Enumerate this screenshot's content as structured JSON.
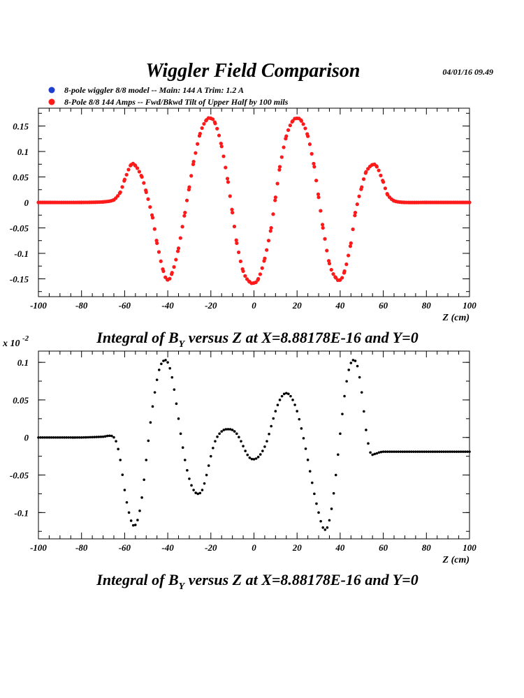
{
  "header": {
    "title": "Wiggler Field Comparison",
    "timestamp": "04/01/16   09.49"
  },
  "legend": {
    "entries": [
      {
        "label": "8-pole wiggler 8/8 model --  Main: 144 A    Trim: 1.2 A",
        "color": "#1f3fd0"
      },
      {
        "label": "8-Pole 8/8 144 Amps -- Fwd/Bkwd Tilt of Upper Half by 100 mils",
        "color": "#ff1a1a"
      }
    ]
  },
  "colors": {
    "series_blue": "#1f3fd0",
    "series_red": "#ff1a1a",
    "series_black": "#000000"
  },
  "chart_data": [
    {
      "type": "scatter",
      "xlabel": "Z (cm)",
      "ylabel": "",
      "xlim": [
        -100,
        100
      ],
      "ylim": [
        -0.185,
        0.185
      ],
      "xticks": [
        "-100",
        "-80",
        "-60",
        "-40",
        "-20",
        "0",
        "20",
        "40",
        "60",
        "80",
        "100"
      ],
      "yticks": [
        "-0.15",
        "-0.1",
        "-0.05",
        "0",
        "0.05",
        "0.1",
        "0.15"
      ],
      "caption": "Integral of B",
      "caption_sub": "Y",
      "caption_rest": " versus Z at X=8.88178E-16 and Y=0",
      "grid": false,
      "series": [
        {
          "color": "#1f3fd0",
          "x": [
            -100,
            -80,
            -70,
            -65,
            -62,
            -60,
            -57,
            -55,
            -52,
            -50,
            -47,
            -45,
            -42,
            -40,
            -38,
            -35,
            -32,
            -30,
            -28,
            -25,
            -22,
            -20,
            -18,
            -15,
            -12,
            -10,
            -8,
            -5,
            -2,
            0,
            2,
            5,
            8,
            10,
            12,
            15,
            18,
            20,
            22,
            25,
            28,
            30,
            32,
            35,
            38,
            40,
            42,
            45,
            47,
            50,
            52,
            55,
            57,
            60,
            62,
            65,
            70,
            80,
            100
          ],
          "y": [
            0,
            0,
            0.001,
            0.005,
            0.02,
            0.045,
            0.074,
            0.072,
            0.05,
            0.02,
            -0.03,
            -0.08,
            -0.135,
            -0.152,
            -0.138,
            -0.09,
            -0.02,
            0.03,
            0.08,
            0.135,
            0.162,
            0.165,
            0.155,
            0.11,
            0.04,
            -0.02,
            -0.08,
            -0.135,
            -0.156,
            -0.158,
            -0.15,
            -0.11,
            -0.05,
            0.01,
            0.07,
            0.13,
            0.16,
            0.165,
            0.16,
            0.13,
            0.07,
            0.01,
            -0.05,
            -0.12,
            -0.148,
            -0.152,
            -0.135,
            -0.08,
            -0.02,
            0.03,
            0.06,
            0.074,
            0.07,
            0.04,
            0.015,
            0.003,
            0,
            0,
            0
          ]
        },
        {
          "color": "#ff1a1a",
          "x": [
            -100,
            -80,
            -70,
            -65,
            -62,
            -60,
            -57,
            -55,
            -52,
            -50,
            -47,
            -45,
            -42,
            -40,
            -38,
            -35,
            -32,
            -30,
            -28,
            -25,
            -22,
            -20,
            -18,
            -15,
            -12,
            -10,
            -8,
            -5,
            -2,
            0,
            2,
            5,
            8,
            10,
            12,
            15,
            18,
            20,
            22,
            25,
            28,
            30,
            32,
            35,
            38,
            40,
            42,
            45,
            47,
            50,
            52,
            55,
            57,
            60,
            62,
            65,
            70,
            80,
            100
          ],
          "y": [
            0,
            0,
            0.001,
            0.005,
            0.02,
            0.045,
            0.074,
            0.072,
            0.05,
            0.02,
            -0.03,
            -0.08,
            -0.135,
            -0.152,
            -0.138,
            -0.09,
            -0.02,
            0.03,
            0.08,
            0.135,
            0.162,
            0.165,
            0.155,
            0.11,
            0.04,
            -0.02,
            -0.08,
            -0.135,
            -0.156,
            -0.158,
            -0.15,
            -0.11,
            -0.05,
            0.01,
            0.07,
            0.13,
            0.16,
            0.165,
            0.16,
            0.13,
            0.07,
            0.01,
            -0.05,
            -0.12,
            -0.148,
            -0.152,
            -0.135,
            -0.08,
            -0.02,
            0.03,
            0.06,
            0.074,
            0.07,
            0.04,
            0.015,
            0.003,
            0,
            0,
            0
          ]
        }
      ]
    },
    {
      "type": "scatter",
      "xlabel": "Z (cm)",
      "ylabel": "",
      "scale_label": "x 10",
      "scale_exp": "-2",
      "xlim": [
        -100,
        100
      ],
      "ylim": [
        -0.135,
        0.115
      ],
      "xticks": [
        "-100",
        "-80",
        "-60",
        "-40",
        "-20",
        "0",
        "20",
        "40",
        "60",
        "80",
        "100"
      ],
      "yticks": [
        "-0.1",
        "-0.05",
        "0",
        "0.05",
        "0.1"
      ],
      "caption": "Integral of B",
      "caption_sub": "Y",
      "caption_rest": " versus Z at X=8.88178E-16 and Y=0",
      "grid": false,
      "series": [
        {
          "color": "#000000",
          "x": [
            -100,
            -90,
            -80,
            -70,
            -66,
            -64,
            -62,
            -60,
            -58,
            -56,
            -54,
            -52,
            -50,
            -48,
            -46,
            -44,
            -42,
            -40,
            -38,
            -36,
            -34,
            -32,
            -30,
            -28,
            -26,
            -24,
            -22,
            -20,
            -18,
            -16,
            -14,
            -12,
            -10,
            -8,
            -6,
            -4,
            -2,
            0,
            2,
            4,
            6,
            8,
            10,
            12,
            14,
            16,
            18,
            20,
            22,
            24,
            26,
            28,
            30,
            32,
            34,
            36,
            38,
            40,
            42,
            44,
            46,
            48,
            50,
            52,
            54,
            56,
            58,
            60,
            62,
            64,
            66,
            70,
            80,
            90,
            100
          ],
          "y": [
            0,
            0,
            0,
            0.001,
            0.002,
            -0.005,
            -0.03,
            -0.07,
            -0.1,
            -0.117,
            -0.11,
            -0.08,
            -0.03,
            0.02,
            0.06,
            0.09,
            0.102,
            0.1,
            0.08,
            0.045,
            0.005,
            -0.03,
            -0.055,
            -0.07,
            -0.075,
            -0.07,
            -0.05,
            -0.025,
            -0.005,
            0.005,
            0.01,
            0.011,
            0.01,
            0.005,
            -0.005,
            -0.018,
            -0.027,
            -0.029,
            -0.026,
            -0.018,
            -0.005,
            0.015,
            0.035,
            0.05,
            0.058,
            0.058,
            0.05,
            0.035,
            0.012,
            -0.015,
            -0.045,
            -0.075,
            -0.1,
            -0.12,
            -0.12,
            -0.095,
            -0.05,
            0.005,
            0.055,
            0.09,
            0.103,
            0.095,
            0.06,
            0.01,
            -0.02,
            -0.022,
            -0.02,
            -0.019,
            -0.019,
            -0.019,
            -0.019,
            -0.019,
            -0.019,
            -0.019,
            -0.019
          ]
        }
      ]
    }
  ]
}
